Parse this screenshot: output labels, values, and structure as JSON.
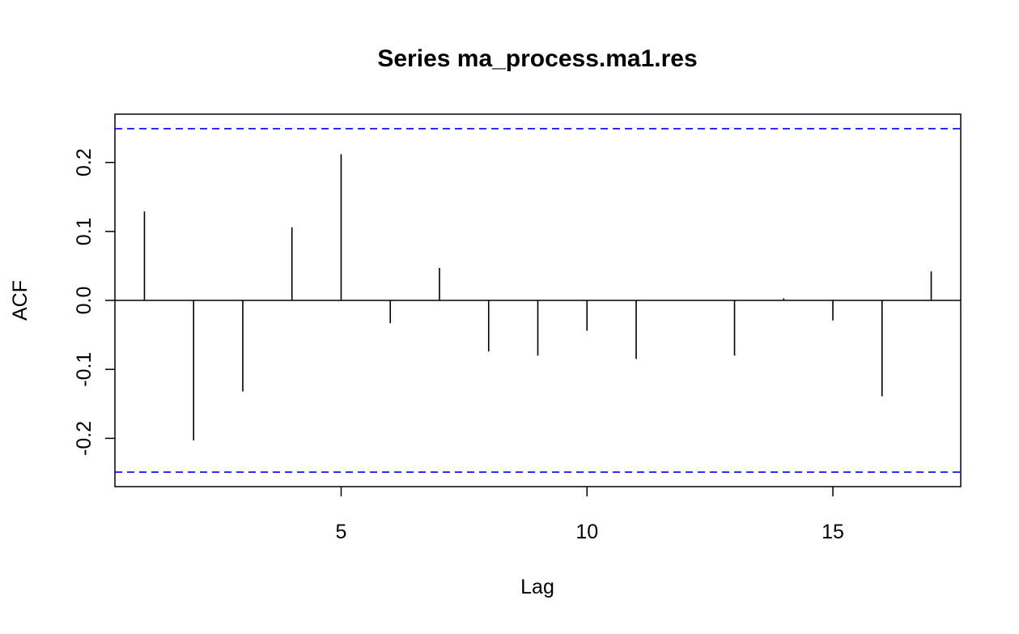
{
  "chart_data": {
    "type": "bar",
    "subtype": "acf-stem",
    "title": "Series ma_process.ma1.res",
    "xlabel": "Lag",
    "ylabel": "ACF",
    "xlim": [
      0.4,
      17.6
    ],
    "ylim": [
      -0.27,
      0.27
    ],
    "x_ticks": [
      {
        "value": 5,
        "label": "5"
      },
      {
        "value": 10,
        "label": "10"
      },
      {
        "value": 15,
        "label": "15"
      }
    ],
    "y_ticks": [
      {
        "value": -0.2,
        "label": "-0.2"
      },
      {
        "value": -0.1,
        "label": "-0.1"
      },
      {
        "value": 0.0,
        "label": "0.0"
      },
      {
        "value": 0.1,
        "label": "0.1"
      },
      {
        "value": 0.2,
        "label": "0.2"
      }
    ],
    "lags": [
      1,
      2,
      3,
      4,
      5,
      6,
      7,
      8,
      9,
      10,
      11,
      12,
      13,
      14,
      15,
      16,
      17
    ],
    "values": [
      0.129,
      -0.203,
      -0.132,
      0.106,
      0.212,
      -0.033,
      0.047,
      -0.074,
      -0.08,
      -0.044,
      -0.085,
      0.0,
      -0.08,
      0.003,
      -0.029,
      -0.139,
      0.042
    ],
    "confidence_bounds": [
      0.249,
      -0.249
    ],
    "confidence_color": "#0000ff",
    "stem_color": "#000000",
    "grid": false,
    "legend": "none"
  }
}
